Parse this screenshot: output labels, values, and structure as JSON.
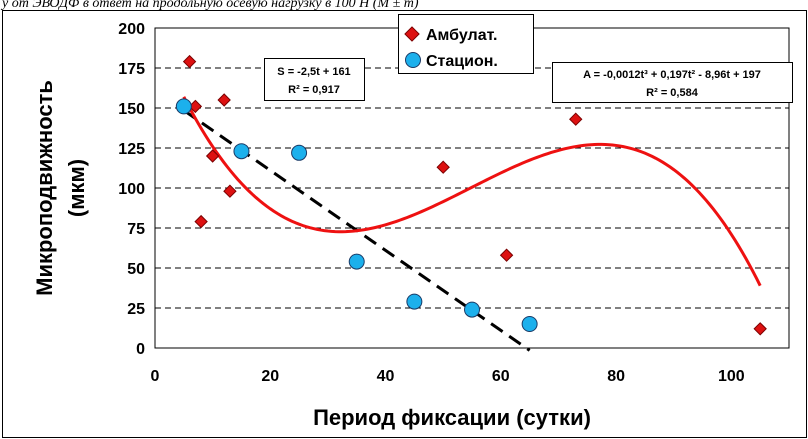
{
  "caption": "у от ЭВОДФ в ответ на продольную осевую нагрузку в 100 Н (М ± m)",
  "chart_data": {
    "type": "scatter",
    "xlabel": "Период фиксации (сутки)",
    "ylabel": "Микроподвижность (мкм)",
    "xlim": [
      0,
      110
    ],
    "ylim": [
      0,
      200
    ],
    "xticks": [
      0,
      20,
      40,
      60,
      80,
      100
    ],
    "yticks": [
      0,
      25,
      50,
      75,
      100,
      125,
      150,
      175,
      200
    ],
    "grid": "horizontal-dashed",
    "legend_placement": "top-center",
    "series": [
      {
        "name": "Амбулат.",
        "marker": "diamond",
        "color": "#dd1111",
        "points": [
          [
            6,
            179
          ],
          [
            7,
            151
          ],
          [
            8,
            79
          ],
          [
            10,
            120
          ],
          [
            12,
            155
          ],
          [
            13,
            98
          ],
          [
            50,
            113
          ],
          [
            61,
            58
          ],
          [
            73,
            143
          ],
          [
            105,
            12
          ]
        ]
      },
      {
        "name": "Стацион.",
        "marker": "circle",
        "color": "#1cb0ec",
        "points": [
          [
            5,
            151
          ],
          [
            15,
            123
          ],
          [
            25,
            122
          ],
          [
            35,
            54
          ],
          [
            45,
            29
          ],
          [
            55,
            24
          ],
          [
            65,
            15
          ]
        ]
      }
    ],
    "trendlines": [
      {
        "series": "Стацион.",
        "kind": "linear",
        "coef": [
          -2.5,
          161
        ],
        "x_range": [
          5,
          65
        ],
        "style": "dashed",
        "color": "#000000",
        "equation": "S = -2,5t + 161",
        "r2": "R² = 0,917"
      },
      {
        "series": "Амбулат.",
        "kind": "cubic",
        "coef": [
          -0.0012,
          0.197,
          -8.96,
          197
        ],
        "x_range": [
          5,
          105
        ],
        "style": "solid",
        "color": "#ee1111",
        "equation": "A = -0,0012t³ + 0,197t² - 8,96t + 197",
        "r2": "R² = 0,584"
      }
    ]
  }
}
